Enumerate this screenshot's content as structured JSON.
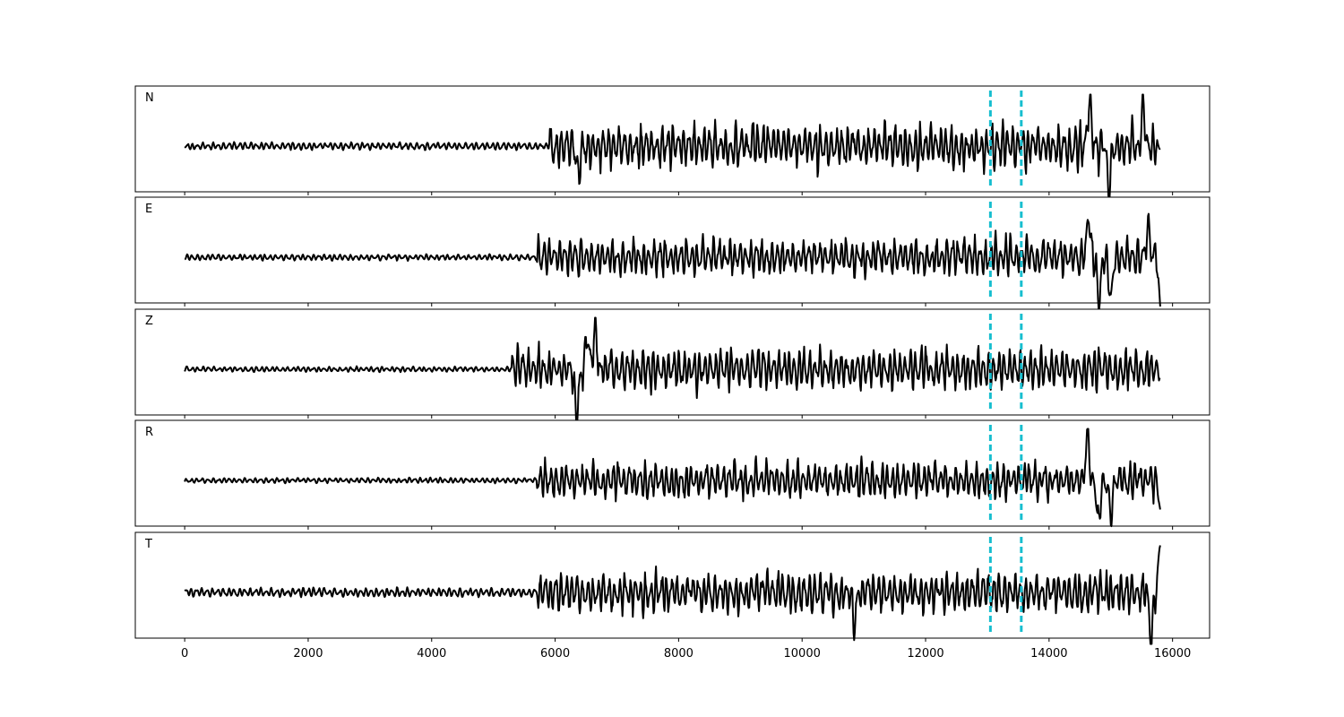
{
  "chart_data": {
    "type": "line",
    "title": "",
    "xlabel": "",
    "ylabel": "",
    "xlim": [
      -800,
      16600
    ],
    "x_ticks": [
      "0",
      "2000",
      "4000",
      "6000",
      "8000",
      "10000",
      "12000",
      "14000",
      "16000"
    ],
    "x_tick_values": [
      0,
      2000,
      4000,
      6000,
      8000,
      10000,
      12000,
      14000,
      16000
    ],
    "x_range": [
      0,
      15800
    ],
    "grid": false,
    "legend": "none",
    "trace_color": "#000000",
    "marker_color": "#17becf",
    "vertical_markers": [
      13050,
      13550
    ],
    "panels": [
      {
        "label": "N",
        "noise_amp": 0.1,
        "signal_amp": 0.58,
        "onset": 5900,
        "peak_events": [
          [
            6370,
            -0.75
          ],
          [
            14650,
            1.05
          ],
          [
            15530,
            0.8
          ],
          [
            14970,
            -0.95
          ]
        ],
        "end_value": -0.05
      },
      {
        "label": "E",
        "noise_amp": 0.08,
        "signal_amp": 0.5,
        "onset": 5700,
        "peak_events": [
          [
            14640,
            0.95
          ],
          [
            14810,
            -1.05
          ],
          [
            15000,
            -0.95
          ],
          [
            15600,
            0.75
          ]
        ],
        "end_value": -1.1
      },
      {
        "label": "Z",
        "noise_amp": 0.07,
        "signal_amp": 0.55,
        "onset": 5300,
        "peak_events": [
          [
            6350,
            -1.1
          ],
          [
            6650,
            0.95
          ],
          [
            6520,
            0.75
          ]
        ],
        "end_value": -0.2
      },
      {
        "label": "R",
        "noise_amp": 0.07,
        "signal_amp": 0.48,
        "onset": 5700,
        "peak_events": [
          [
            14620,
            1.05
          ],
          [
            14800,
            -0.95
          ],
          [
            15000,
            -0.85
          ]
        ],
        "end_value": -0.65
      },
      {
        "label": "T",
        "noise_amp": 0.12,
        "signal_amp": 0.55,
        "onset": 5700,
        "peak_events": [
          [
            15650,
            -1.1
          ],
          [
            15820,
            1.05
          ],
          [
            10850,
            -0.75
          ]
        ],
        "end_value": 1.05
      }
    ]
  }
}
